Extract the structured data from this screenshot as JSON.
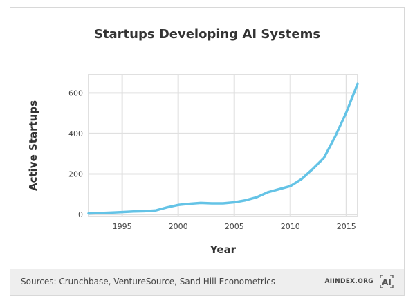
{
  "chart_data": {
    "type": "line",
    "title": "Startups Developing AI Systems",
    "xlabel": "Year",
    "ylabel": "Active Startups",
    "xlim": [
      1992,
      2016
    ],
    "ylim": [
      -10,
      690
    ],
    "xticks": [
      1995,
      2000,
      2005,
      2010,
      2015
    ],
    "yticks": [
      0,
      200,
      400,
      600
    ],
    "grid": true,
    "series": [
      {
        "color": "#64c3e6",
        "x": [
          1992,
          1993,
          1994,
          1995,
          1996,
          1997,
          1998,
          1999,
          2000,
          2001,
          2002,
          2003,
          2004,
          2005,
          2006,
          2007,
          2008,
          2009,
          2010,
          2011,
          2012,
          2013,
          2014,
          2015,
          2016
        ],
        "y": [
          5,
          7,
          9,
          12,
          15,
          16,
          20,
          35,
          47,
          53,
          57,
          55,
          55,
          60,
          70,
          85,
          110,
          125,
          140,
          175,
          225,
          280,
          385,
          505,
          645
        ]
      }
    ]
  },
  "footer": {
    "source": "Sources: Crunchbase, VentureSource, Sand Hill Econometrics",
    "brand": "AIINDEX.ORG",
    "logo_text": "AI"
  }
}
